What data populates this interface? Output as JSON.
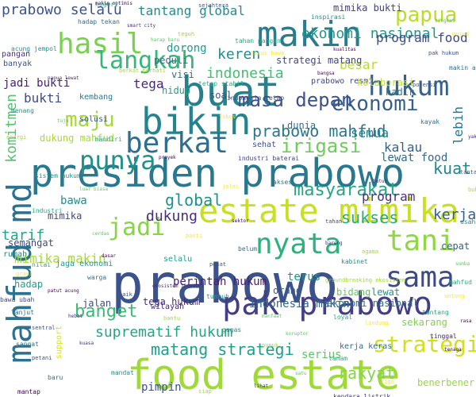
{
  "words": [
    {
      "text": "presiden prabowo",
      "color": "#2a788e"
    },
    {
      "text": "food estate",
      "color": "#a0da39"
    },
    {
      "text": "prabowo",
      "color": "#3b528b"
    },
    {
      "text": "estate mimika",
      "color": "#c8e020"
    },
    {
      "text": "mahfud md",
      "color": "#2c728e"
    },
    {
      "text": "buat",
      "color": "#27808e"
    },
    {
      "text": "bikin",
      "color": "#25838e"
    },
    {
      "text": "makin",
      "color": "#287c8e"
    },
    {
      "text": "pak prabowo",
      "color": "#433e85"
    },
    {
      "text": "hukum",
      "color": "#34618d"
    },
    {
      "text": "nyata",
      "color": "#2db27d"
    },
    {
      "text": "berkat",
      "color": "#2e6e8e"
    },
    {
      "text": "sama",
      "color": "#3e4989"
    },
    {
      "text": "strategi",
      "color": "#d0e11c"
    },
    {
      "text": "tani",
      "color": "#8fd744"
    },
    {
      "text": "punya",
      "color": "#21918c"
    },
    {
      "text": "jadi",
      "color": "#86d549"
    },
    {
      "text": "hasil",
      "color": "#7ad151"
    },
    {
      "text": "langkah",
      "color": "#35b779"
    },
    {
      "text": "ekonomi",
      "color": "#355f8d"
    },
    {
      "text": "masa depan",
      "color": "#3b528b"
    },
    {
      "text": "maju",
      "color": "#a2da37"
    },
    {
      "text": "irigasi",
      "color": "#6ccd5a"
    },
    {
      "text": "prabowo mahfud",
      "color": "#2a778e"
    },
    {
      "text": "banget",
      "color": "#3aba76"
    },
    {
      "text": "papua",
      "color": "#bade28"
    },
    {
      "text": "keren",
      "color": "#228c8d"
    },
    {
      "text": "masyarakat",
      "color": "#22a785"
    },
    {
      "text": "sukses",
      "color": "#25ac82"
    },
    {
      "text": "global",
      "color": "#21918c"
    },
    {
      "text": "matang strategi",
      "color": "#1fa088"
    },
    {
      "text": "rakyat",
      "color": "#84d44b"
    },
    {
      "text": "kuat",
      "color": "#25848e"
    },
    {
      "text": "ekonomi nasional",
      "color": "#1f998a"
    },
    {
      "text": "indonesia",
      "color": "#44bf70"
    },
    {
      "text": "dukung",
      "color": "#46307e"
    },
    {
      "text": "bawa",
      "color": "#228d8d"
    },
    {
      "text": "suprematif hukum",
      "color": "#22a785"
    },
    {
      "text": "kerja",
      "color": "#355e8d"
    },
    {
      "text": "tarif",
      "color": "#20a486"
    },
    {
      "text": "komitmen",
      "color": "#52c569"
    },
    {
      "text": "prabowo selalu",
      "color": "#3b528b"
    },
    {
      "text": "tantang global",
      "color": "#228b8d"
    },
    {
      "text": "program food",
      "color": "#3e4989"
    },
    {
      "text": "mimika makin",
      "color": "#a5db36"
    },
    {
      "text": "tega",
      "color": "#482878"
    },
    {
      "text": "bukti",
      "color": "#3e4c8a"
    },
    {
      "text": "semua",
      "color": "#26828e"
    },
    {
      "text": "lebih",
      "color": "#2a788e"
    },
    {
      "text": "besar",
      "color": "#b5de2b"
    },
    {
      "text": "jadi bukti",
      "color": "#482173"
    },
    {
      "text": "dukung mahfud",
      "color": "#a8db34"
    },
    {
      "text": "kalau",
      "color": "#355f8d"
    },
    {
      "text": "perintah hukum",
      "color": "#481f70"
    },
    {
      "text": "terus",
      "color": "#1f968b"
    },
    {
      "text": "pimpin",
      "color": "#3b528b"
    },
    {
      "text": "dunia",
      "color": "#2e6f8e"
    },
    {
      "text": "lewat food",
      "color": "#306a8e"
    },
    {
      "text": "hadap",
      "color": "#1f9f88"
    },
    {
      "text": "benerbener",
      "color": "#98d83e"
    },
    {
      "text": "semangat",
      "color": "#3f4889"
    },
    {
      "text": "jalan",
      "color": "#3d4e8a"
    },
    {
      "text": "hadir",
      "color": "#287d8e"
    },
    {
      "text": "sehat",
      "color": "#3b528b"
    },
    {
      "text": "visi",
      "color": "#2d708e"
    },
    {
      "text": "hidup",
      "color": "#1fa088"
    },
    {
      "text": "program",
      "color": "#46327e"
    },
    {
      "text": "mimika",
      "color": "#3e4a89"
    },
    {
      "text": "serius",
      "color": "#5ac864"
    },
    {
      "text": "indonesia makin",
      "color": "#31688e"
    },
    {
      "text": "ekonomi nasional",
      "color": "#2d708e"
    },
    {
      "text": "lewat",
      "color": "#20928c"
    },
    {
      "text": "tega hukum",
      "color": "#472d7b"
    },
    {
      "text": "strategi matang",
      "color": "#3f4788"
    },
    {
      "text": "dorong",
      "color": "#1e9b8a"
    },
    {
      "text": "peduli",
      "color": "#31688e"
    },
    {
      "text": "soal",
      "color": "#3b528b"
    },
    {
      "text": "mimika bukti",
      "color": "#433e85"
    },
    {
      "text": "industri baterai",
      "color": "#404588"
    },
    {
      "text": "tantang",
      "color": "#22a884"
    },
    {
      "text": "cepat",
      "color": "#355e8d"
    },
    {
      "text": "sekarang",
      "color": "#7fd34e"
    },
    {
      "text": "rumah",
      "color": "#24868e"
    },
    {
      "text": "jaga ekonomi",
      "color": "#1f988b"
    },
    {
      "text": "bidang",
      "color": "#5ec962"
    },
    {
      "text": "wilayah",
      "color": "#482475"
    },
    {
      "text": "orang",
      "color": "#365c8d"
    },
    {
      "text": "solusi",
      "color": "#3a548c"
    },
    {
      "text": "kembang",
      "color": "#2a778e"
    },
    {
      "text": "pangan",
      "color": "#46327e"
    },
    {
      "text": "banyak",
      "color": "#3b528b"
    },
    {
      "text": "prabowo resmi",
      "color": "#404588"
    },
    {
      "text": "kolaborasi",
      "color": "#c2df23"
    },
    {
      "text": "bawa ubah",
      "color": "#3e4989"
    },
    {
      "text": "selalu",
      "color": "#1fa188"
    },
    {
      "text": "support",
      "color": "#d8e219"
    },
    {
      "text": "indonesia tetap",
      "color": "#3b528b"
    },
    {
      "text": "tinggal",
      "color": "#482071"
    },
    {
      "text": "kerja keras",
      "color": "#2e6e8e"
    },
    {
      "text": "kendara listrik",
      "color": "#453781"
    },
    {
      "text": "mantap",
      "color": "#440154"
    }
  ],
  "minor_words": [
    "makin optimis",
    "sejahtera",
    "inspirasi",
    "tingkat",
    "mujud",
    "hadap tekan",
    "smart city",
    "teguh",
    "tahan pangan",
    "kualitas",
    "pak hukum",
    "acung jempol",
    "harap baru",
    "terus bawa",
    "makin asa",
    "papua lewat",
    "berkat perhati",
    "tetap stabil",
    "bangsa",
    "potensi",
    "menang",
    "tuju",
    "fokus",
    "kayak",
    "yakin",
    "energi",
    "mandiri",
    "proyek",
    "tantang",
    "sistem hukum",
    "luar biasa",
    "jelas",
    "akses",
    "butuh",
    "buka",
    "industri",
    "sektor",
    "tahan",
    "usaha",
    "cerdas",
    "pasti",
    "belum",
    "bareng",
    "agama",
    "nilai",
    "dasar",
    "pesat",
    "kabinet",
    "sumba",
    "grasi",
    "warga",
    "ekosistem industri",
    "groundbreaking ekosistem",
    "mahfud md indonesia",
    "patut acung",
    "baik",
    "tumbuh",
    "manfaat",
    "untung",
    "lanjut",
    "hebat",
    "bantu",
    "loyal",
    "rasa",
    "sentral",
    "gagas",
    "koruptor",
    "lindung",
    "sangat",
    "kuasa",
    "pupuk",
    "tanam",
    "tenaga",
    "petani",
    "mandat",
    "satu",
    "tiga",
    "baru",
    "lihat",
    "siap",
    "negeri"
  ]
}
